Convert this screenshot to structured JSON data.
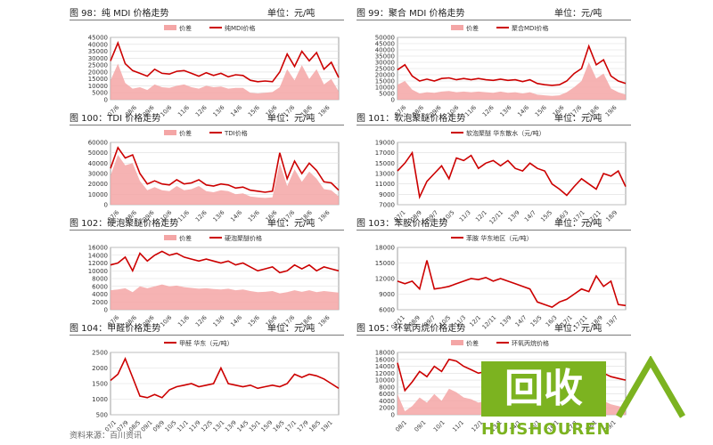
{
  "panels": [
    {
      "id": "p98",
      "title": "图 98：纯 MDI 价格走势",
      "unit": "单位：元/吨"
    },
    {
      "id": "p99",
      "title": "图 99：聚合 MDI 价格走势",
      "unit": "单位：元/吨"
    },
    {
      "id": "p100",
      "title": "图 100：TDI 价格走势",
      "unit": "单位：元/吨"
    },
    {
      "id": "p101",
      "title": "图 101：软泡聚醚价格走势",
      "unit": "单位：元/吨"
    },
    {
      "id": "p102",
      "title": "图 102：硬泡聚醚价格走势",
      "unit": "单位：元/吨"
    },
    {
      "id": "p103",
      "title": "图 103：苯胺价格走势",
      "unit": "单位：元/吨"
    },
    {
      "id": "p104",
      "title": "图 104：甲醛价格走势",
      "unit": "单位：元/吨"
    },
    {
      "id": "p105",
      "title": "图 105：环氧丙烷价格走势",
      "unit": "单位：元/吨"
    }
  ],
  "footer": "资料来源：百川资讯",
  "watermark": {
    "box_text": "回收",
    "brand": "HUISHOUREN",
    "color": "#7cb320"
  },
  "chart_data": [
    {
      "type": "area",
      "id": "p98",
      "legend": [
        "价差",
        "纯MDI价格"
      ],
      "yticks": [
        0,
        5000,
        10000,
        15000,
        20000,
        25000,
        30000,
        35000,
        40000,
        45000
      ],
      "ylim": [
        0,
        45000
      ],
      "xticks": [
        "07/6",
        "08/6",
        "09/6",
        "10/6",
        "11/6",
        "12/6",
        "13/6",
        "14/6",
        "15/6",
        "16/6",
        "17/6",
        "18/6",
        "19/6"
      ],
      "series": [
        {
          "name": "纯MDI价格",
          "color": "#cc0000",
          "values": [
            28000,
            41000,
            26000,
            21000,
            19000,
            17000,
            22000,
            19000,
            18500,
            20500,
            21000,
            19000,
            17000,
            19500,
            17500,
            19000,
            16500,
            18000,
            17500,
            14000,
            13000,
            13500,
            13000,
            20000,
            33000,
            24000,
            35000,
            28000,
            34000,
            22000,
            27000,
            16000
          ]
        },
        {
          "name": "价差",
          "color": "#f4a6a6",
          "values": [
            14000,
            26000,
            12000,
            8000,
            9000,
            7000,
            11000,
            9000,
            8500,
            10000,
            11000,
            9000,
            8000,
            10000,
            9000,
            9500,
            8000,
            8500,
            8500,
            5000,
            4500,
            5000,
            5500,
            9000,
            22000,
            14000,
            25000,
            15000,
            22000,
            11000,
            15000,
            6000
          ]
        }
      ]
    },
    {
      "type": "area",
      "id": "p99",
      "legend": [
        "价差",
        "聚合MDI价格"
      ],
      "yticks": [
        0,
        5000,
        10000,
        15000,
        20000,
        25000,
        30000,
        35000,
        40000,
        45000,
        50000
      ],
      "ylim": [
        0,
        50000
      ],
      "xticks": [
        "07/6",
        "08/6",
        "09/6",
        "10/6",
        "11/6",
        "12/6",
        "13/6",
        "14/6",
        "15/6",
        "16/6",
        "17/6",
        "18/6",
        "19/6"
      ],
      "series": [
        {
          "name": "聚合MDI价格",
          "color": "#cc0000",
          "values": [
            24000,
            28000,
            19000,
            15000,
            16500,
            15000,
            17000,
            17500,
            16000,
            17000,
            16000,
            17000,
            16000,
            15500,
            16500,
            15500,
            16000,
            14500,
            16000,
            13000,
            12000,
            11500,
            12000,
            15000,
            21000,
            25000,
            43000,
            28000,
            32000,
            19000,
            15000,
            13000
          ]
        },
        {
          "name": "价差",
          "color": "#f4a6a6",
          "values": [
            12000,
            15000,
            8000,
            5000,
            6000,
            5500,
            6500,
            7000,
            6000,
            6500,
            6000,
            6500,
            6000,
            5500,
            6500,
            5500,
            6000,
            5000,
            6000,
            4000,
            3500,
            3000,
            3500,
            6000,
            10000,
            15000,
            30000,
            17000,
            21000,
            9000,
            6000,
            4000
          ]
        }
      ]
    },
    {
      "type": "area",
      "id": "p100",
      "legend": [
        "价差",
        "TDI价格"
      ],
      "yticks": [
        0,
        10000,
        20000,
        30000,
        40000,
        50000,
        60000
      ],
      "ylim": [
        0,
        60000
      ],
      "xticks": [
        "07/6",
        "08/6",
        "09/6",
        "10/6",
        "11/6",
        "12/6",
        "13/6",
        "14/6",
        "15/6",
        "16/6",
        "17/6",
        "18/6",
        "19/6"
      ],
      "series": [
        {
          "name": "TDI价格",
          "color": "#cc0000",
          "values": [
            35000,
            55000,
            45000,
            48000,
            30000,
            20000,
            23000,
            20000,
            19000,
            24000,
            20000,
            21000,
            24000,
            19000,
            18000,
            20000,
            19000,
            16000,
            17000,
            14000,
            13000,
            12000,
            13000,
            50000,
            25000,
            42000,
            30000,
            40000,
            33000,
            22000,
            21000,
            14000
          ]
        },
        {
          "name": "价差",
          "color": "#f4a6a6",
          "values": [
            28000,
            48000,
            38000,
            40000,
            23000,
            14000,
            17000,
            14000,
            13000,
            18000,
            14000,
            15000,
            18000,
            13000,
            12000,
            14000,
            13000,
            10000,
            11000,
            8000,
            7000,
            6500,
            7000,
            40000,
            18000,
            34000,
            22000,
            32000,
            25000,
            15000,
            14000,
            8000
          ]
        }
      ]
    },
    {
      "type": "line",
      "id": "p101",
      "legend": [
        "软泡聚醚 华东散水（元/吨）"
      ],
      "yticks": [
        7000,
        9000,
        11000,
        13000,
        15000,
        17000,
        19000
      ],
      "ylim": [
        7000,
        19000
      ],
      "xticks": [
        "07/1",
        "08/9",
        "09/7",
        "10/5",
        "11/3",
        "12/1",
        "12/11",
        "13/9",
        "14/7",
        "15/5",
        "16/3",
        "17/1",
        "17/11",
        "18/9"
      ],
      "series": [
        {
          "name": "软泡聚醚 华东散水（元/吨）",
          "color": "#cc0000",
          "values": [
            13500,
            15000,
            17000,
            8500,
            11500,
            13000,
            14500,
            12000,
            16000,
            15500,
            16500,
            14000,
            15000,
            15500,
            14500,
            15500,
            14000,
            13500,
            15000,
            14000,
            13500,
            11000,
            10000,
            8800,
            10500,
            12000,
            11000,
            10000,
            13000,
            12500,
            13500,
            10500
          ]
        }
      ]
    },
    {
      "type": "area",
      "id": "p102",
      "legend": [
        "价差",
        "硬泡聚醚价格"
      ],
      "yticks": [
        0,
        2000,
        4000,
        6000,
        8000,
        10000,
        12000,
        14000,
        16000
      ],
      "ylim": [
        0,
        16000
      ],
      "xticks": [
        "07/6",
        "08/6",
        "09/6",
        "10/6",
        "11/6",
        "12/6",
        "13/6",
        "14/6",
        "15/6",
        "16/6",
        "17/6",
        "18/6",
        "19/6"
      ],
      "series": [
        {
          "name": "硬泡聚醚价格",
          "color": "#cc0000",
          "values": [
            11500,
            12000,
            13500,
            10000,
            14500,
            12500,
            14000,
            15000,
            14000,
            14500,
            13500,
            13000,
            12500,
            13000,
            12500,
            12000,
            12500,
            11500,
            12000,
            11000,
            10000,
            10500,
            11000,
            9500,
            10000,
            11500,
            10500,
            11500,
            10000,
            11000,
            10500,
            10000
          ]
        },
        {
          "name": "价差",
          "color": "#f4a6a6",
          "values": [
            5000,
            5200,
            5500,
            4500,
            6000,
            5500,
            6000,
            6500,
            6000,
            6200,
            5800,
            5600,
            5400,
            5500,
            5300,
            5200,
            5400,
            5000,
            5200,
            4800,
            4500,
            4600,
            4800,
            4200,
            4500,
            5000,
            4600,
            5000,
            4500,
            4800,
            4600,
            4400
          ]
        }
      ]
    },
    {
      "type": "line",
      "id": "p103",
      "legend": [
        "苯胺 华东地区（元/吨）"
      ],
      "yticks": [
        6000,
        9000,
        12000,
        15000,
        18000
      ],
      "ylim": [
        6000,
        18000
      ],
      "xticks": [
        "07/11",
        "08/9",
        "09/7",
        "10/5",
        "11/3",
        "12/1",
        "12/11",
        "13/9",
        "14/7",
        "15/5",
        "16/3",
        "17/1",
        "17/11",
        "18/9",
        "19/7"
      ],
      "series": [
        {
          "name": "苯胺 华东地区（元/吨）",
          "color": "#cc0000",
          "values": [
            11500,
            11000,
            11500,
            10000,
            15500,
            10000,
            10200,
            10500,
            11000,
            11500,
            12000,
            11800,
            12200,
            11500,
            12000,
            11500,
            11000,
            10500,
            10000,
            7500,
            7000,
            6500,
            7500,
            8000,
            9000,
            10000,
            9500,
            12500,
            10500,
            11500,
            7000,
            6800
          ]
        }
      ]
    },
    {
      "type": "line",
      "id": "p104",
      "legend": [
        "甲醛 华东（元/吨）"
      ],
      "yticks": [
        500,
        1000,
        1500,
        2000,
        2500
      ],
      "ylim": [
        500,
        2500
      ],
      "xticks": [
        "07/1",
        "07/9",
        "08/5",
        "09/1",
        "09/9",
        "10/5",
        "11/1",
        "11/9",
        "12/5",
        "13/1",
        "13/9",
        "14/5",
        "15/1",
        "15/9",
        "16/5",
        "17/1",
        "17/9",
        "18/5",
        "19/1"
      ],
      "series": [
        {
          "name": "甲醛 华东（元/吨）",
          "color": "#cc0000",
          "values": [
            1600,
            1800,
            2300,
            1700,
            1100,
            1050,
            1150,
            1050,
            1300,
            1400,
            1450,
            1500,
            1400,
            1450,
            1500,
            2000,
            1500,
            1450,
            1400,
            1450,
            1350,
            1400,
            1450,
            1400,
            1500,
            1800,
            1700,
            1800,
            1750,
            1650,
            1500,
            1350
          ]
        }
      ]
    },
    {
      "type": "area",
      "id": "p105",
      "legend": [
        "价差",
        "环氧丙烷价格"
      ],
      "yticks": [
        0,
        2000,
        4000,
        6000,
        8000,
        10000,
        12000,
        14000,
        16000,
        18000
      ],
      "ylim": [
        0,
        18000
      ],
      "xticks": [
        "08/1",
        "09/1",
        "10/1",
        "11/1",
        "12/1",
        "13/1",
        "14/1",
        "15/1",
        "16/1",
        "17/1",
        "18/1",
        "19/1"
      ],
      "series": [
        {
          "name": "环氧丙烷价格",
          "color": "#cc0000",
          "values": [
            15000,
            7000,
            9500,
            12500,
            11000,
            14000,
            12500,
            16000,
            15500,
            14000,
            13000,
            12000,
            12500,
            11000,
            10500,
            10000,
            9500,
            9000,
            10000,
            10500,
            9500,
            9000,
            9500,
            10000,
            11000,
            12500,
            12000,
            11500,
            12000,
            11000,
            10500,
            10000
          ]
        },
        {
          "name": "价差",
          "color": "#f4a6a6",
          "values": [
            6000,
            1000,
            2500,
            5000,
            3500,
            6000,
            4000,
            7500,
            6500,
            5000,
            4500,
            3500,
            4000,
            3000,
            2500,
            2000,
            1500,
            1200,
            2000,
            2500,
            1500,
            1000,
            1500,
            2000,
            3000,
            5000,
            4000,
            3500,
            4000,
            3000,
            2500,
            2000
          ]
        }
      ]
    }
  ]
}
